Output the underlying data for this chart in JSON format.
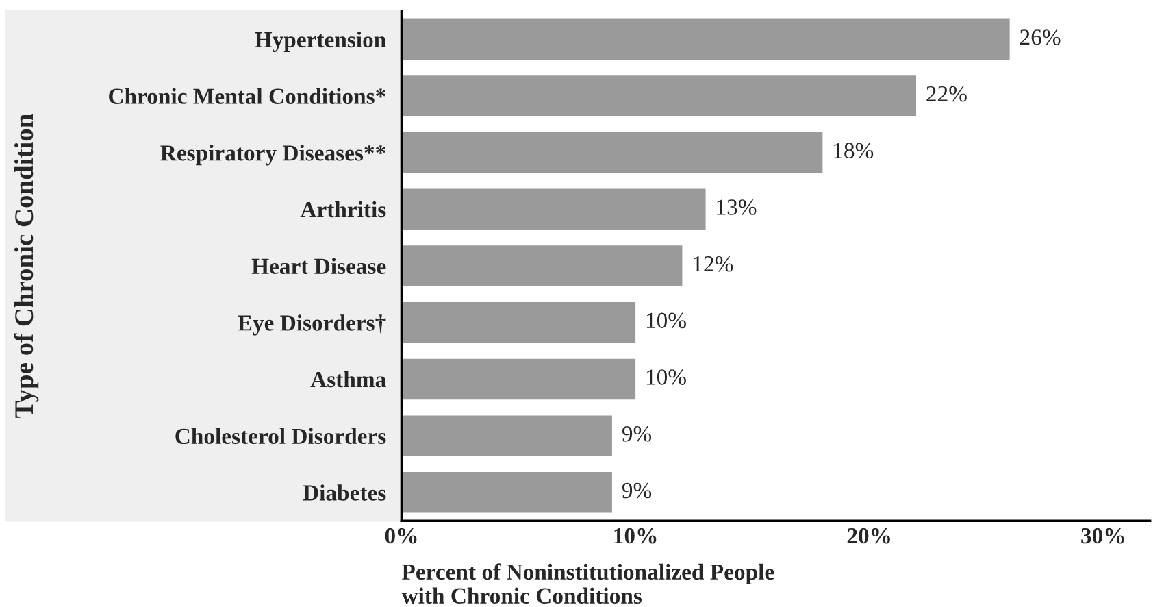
{
  "chart_data": {
    "type": "bar",
    "orientation": "horizontal",
    "categories": [
      "Hypertension",
      "Chronic Mental Conditions*",
      "Respiratory Diseases**",
      "Arthritis",
      "Heart Disease",
      "Eye Disorders†",
      "Asthma",
      "Cholesterol Disorders",
      "Diabetes"
    ],
    "values": [
      26,
      22,
      18,
      13,
      12,
      10,
      10,
      9,
      9
    ],
    "value_labels": [
      "26%",
      "22%",
      "18%",
      "13%",
      "12%",
      "10%",
      "10%",
      "9%",
      "9%"
    ],
    "color": "#9a9a9a",
    "xlabel": "Percent of Noninstitutionalized People\nwith Chronic Conditions",
    "ylabel": "Type of Chronic Condition",
    "xlim": [
      0,
      32
    ],
    "xticks": [
      {
        "value": 0,
        "label": "0%"
      },
      {
        "value": 10,
        "label": "10%"
      },
      {
        "value": 20,
        "label": "20%"
      },
      {
        "value": 30,
        "label": "30%"
      }
    ],
    "grid": false,
    "legend": false
  }
}
